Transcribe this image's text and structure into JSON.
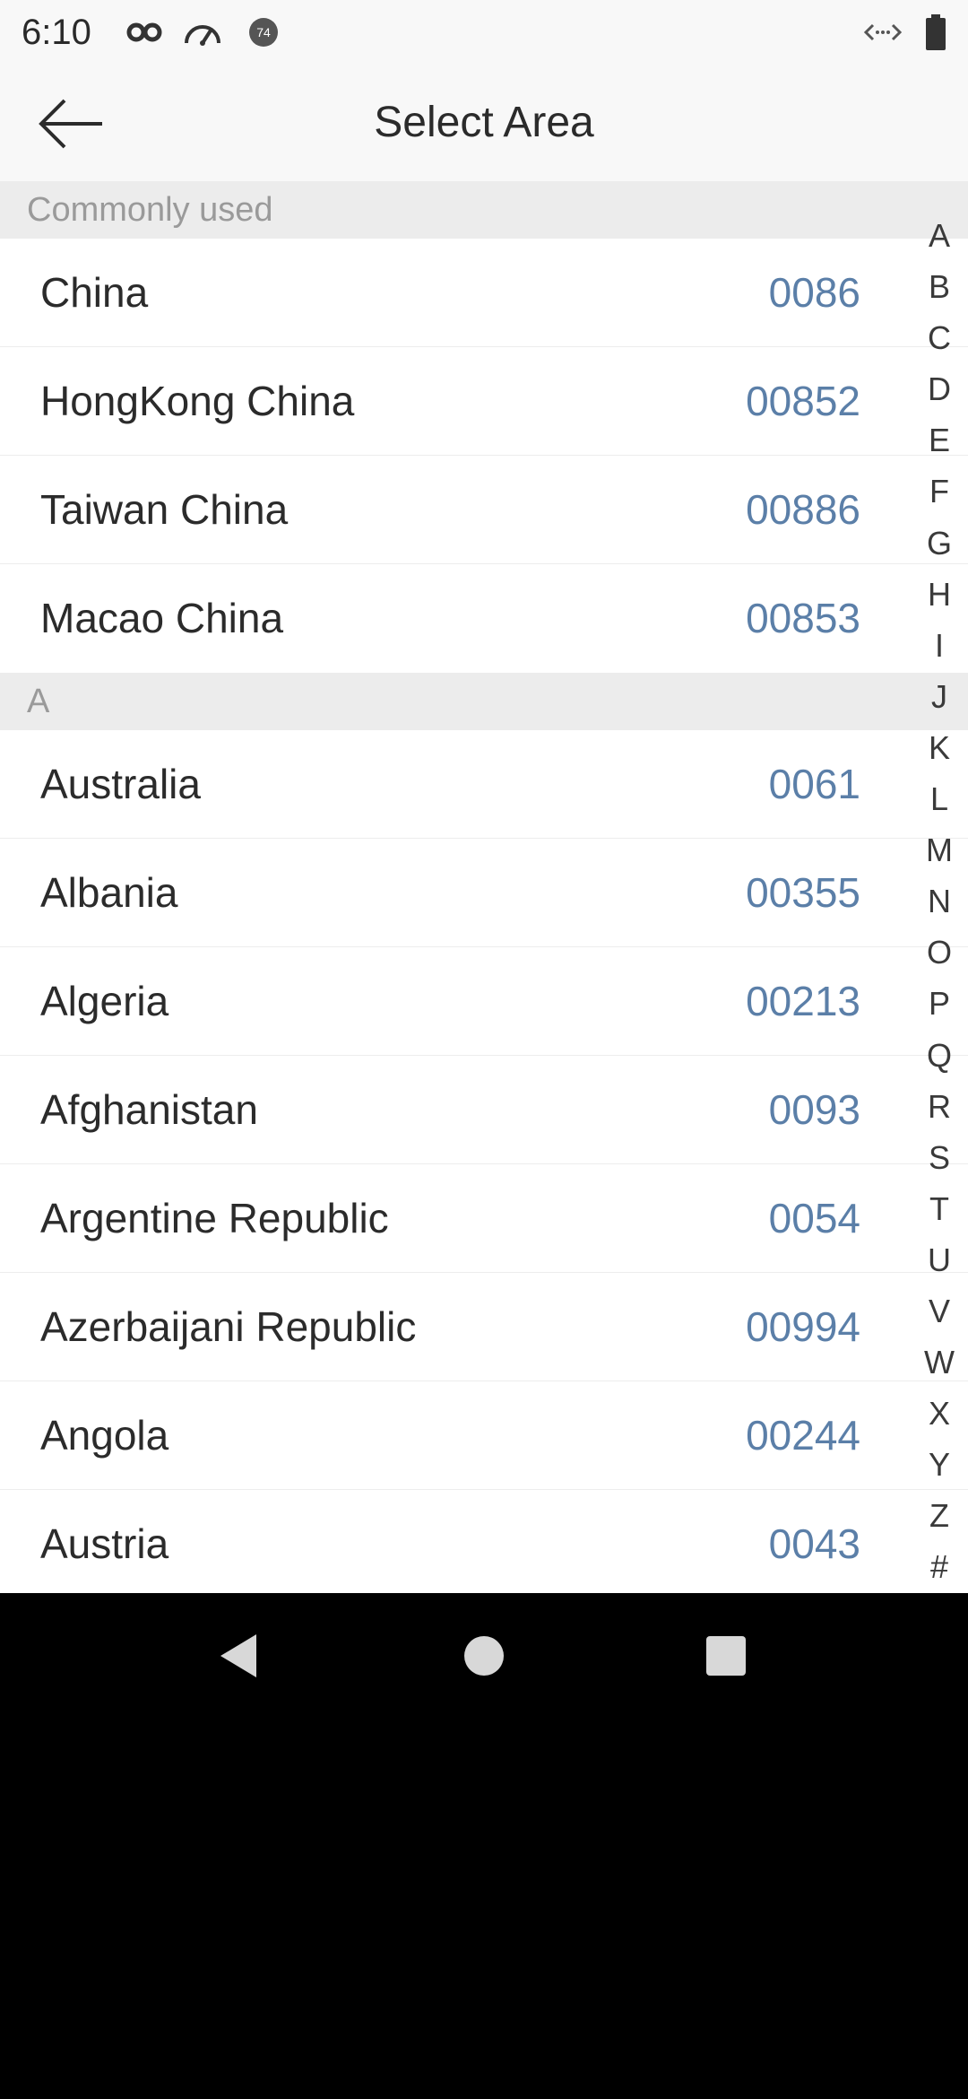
{
  "status_bar": {
    "time": "6:10",
    "icons_left": [
      "infinity-icon",
      "speedometer-icon",
      "badge-74-icon"
    ],
    "badge_text": "74",
    "icons_right": [
      "data-transfer-icon",
      "battery-icon"
    ]
  },
  "header": {
    "title": "Select Area",
    "back_icon": "arrow-left-icon"
  },
  "sections": [
    {
      "title": "Commonly used",
      "items": [
        {
          "name": "China",
          "code": "0086"
        },
        {
          "name": "HongKong China",
          "code": "00852"
        },
        {
          "name": "Taiwan China",
          "code": "00886"
        },
        {
          "name": "Macao China",
          "code": "00853"
        }
      ]
    },
    {
      "title": "A",
      "items": [
        {
          "name": "Australia",
          "code": "0061"
        },
        {
          "name": "Albania",
          "code": "00355"
        },
        {
          "name": "Algeria",
          "code": "00213"
        },
        {
          "name": "Afghanistan",
          "code": "0093"
        },
        {
          "name": "Argentine Republic",
          "code": "0054"
        },
        {
          "name": "Azerbaijani Republic",
          "code": "00994"
        },
        {
          "name": "Angola",
          "code": "00244"
        },
        {
          "name": "Austria",
          "code": "0043"
        }
      ]
    }
  ],
  "alphabet_index": [
    "A",
    "B",
    "C",
    "D",
    "E",
    "F",
    "G",
    "H",
    "I",
    "J",
    "K",
    "L",
    "M",
    "N",
    "O",
    "P",
    "Q",
    "R",
    "S",
    "T",
    "U",
    "V",
    "W",
    "X",
    "Y",
    "Z",
    "#"
  ],
  "nav_bar": {
    "icons": [
      "back-triangle-icon",
      "home-circle-icon",
      "recents-square-icon"
    ]
  },
  "colors": {
    "code_blue": "#5b7fa8",
    "section_bg": "#ececec",
    "header_bg": "#f8f8f8"
  }
}
